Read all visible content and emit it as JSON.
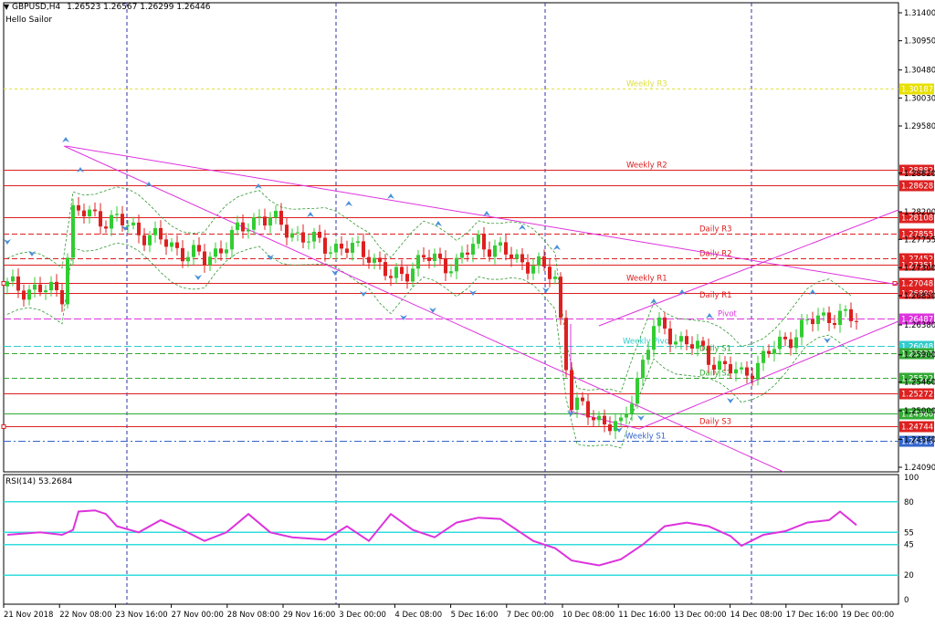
{
  "header": {
    "menu_arrow": "▼",
    "symbol": "GBPUSD,H4",
    "ohlc": "1.26523 1.26567 1.26299 1.26446",
    "indicator": "Hello Sailor"
  },
  "rsi": {
    "label": "RSI(14) 53.2684",
    "level_labels": [
      "100",
      "80",
      "55",
      "45",
      "20",
      "0"
    ]
  },
  "price_axis": {
    "ticks": [
      "1.31400",
      "1.30950",
      "1.30480",
      "1.30030",
      "1.29580",
      "1.28820",
      "1.28200",
      "1.27755",
      "1.27300",
      "1.26850",
      "1.26380",
      "1.25900",
      "1.25460",
      "1.25000",
      "1.24540",
      "1.24090"
    ]
  },
  "time_axis": {
    "labels": [
      "21 Nov 2018",
      "22 Nov 08:00",
      "23 Nov 16:00",
      "27 Nov 00:00",
      "28 Nov 08:00",
      "29 Nov 16:00",
      "3 Dec 00:00",
      "4 Dec 08:00",
      "5 Dec 16:00",
      "7 Dec 00:00",
      "10 Dec 08:00",
      "11 Dec 16:00",
      "13 Dec 00:00",
      "14 Dec 08:00",
      "17 Dec 16:00",
      "19 Dec 00:00"
    ]
  },
  "levels": [
    {
      "name": "Weekly R3",
      "price": "1.30187",
      "color": "#e0e040",
      "tag_color": "#e8e000"
    },
    {
      "name": "Weekly R2",
      "price": "1.28882",
      "color": "#dd2020",
      "tag_color": "#dd2020"
    },
    {
      "name": "",
      "price": "1.28628",
      "color": "#dd2020",
      "tag_color": "#dd2020"
    },
    {
      "name": "",
      "price": "1.28108",
      "color": "#dd2020",
      "tag_color": "#dd2020"
    },
    {
      "name": "Daily R3",
      "price": "1.27855",
      "color": "#dd2020",
      "tag_color": "#dd2020"
    },
    {
      "name": "Daily R2",
      "price": "1.27452",
      "color": "#dd2020",
      "tag_color": "#dd2020"
    },
    {
      "name": "",
      "price": "1.27351",
      "color": "#dd2020",
      "tag_color": "#dd2020"
    },
    {
      "name": "Weekly R1",
      "price": "1.27048",
      "color": "#dd2020",
      "tag_color": "#dd2020"
    },
    {
      "name": "",
      "price": "1.26890",
      "color": "#dd2020",
      "tag_color": "#dd2020"
    },
    {
      "name": "Daily R1",
      "price": "",
      "color": "#dd2020",
      "tag_color": "#dd2020"
    },
    {
      "name": "Pivot",
      "price": "1.26487",
      "color": "#dd33dd",
      "tag_color": "#dd33dd"
    },
    {
      "name": "Weekly Pivot",
      "price": "1.26048",
      "color": "#33cccc",
      "tag_color": "#33cccc"
    },
    {
      "name": "Daily S1",
      "price": "1.25925",
      "color": "#33aa33",
      "tag_color": "#33aa33"
    },
    {
      "name": "Daily S2",
      "price": "1.25522",
      "color": "#33aa33",
      "tag_color": "#33aa33"
    },
    {
      "name": "",
      "price": "1.25272",
      "color": "#dd2020",
      "tag_color": "#dd2020"
    },
    {
      "name": "",
      "price": "1.24960",
      "color": "#33aa33",
      "tag_color": "#33aa33"
    },
    {
      "name": "Daily S3",
      "price": "1.24744",
      "color": "#dd2020",
      "tag_color": "#dd2020"
    },
    {
      "name": "Weekly S1",
      "price": "1.24519",
      "color": "#3366cc",
      "tag_color": "#3366cc"
    }
  ],
  "colors": {
    "bull": "#33cc33",
    "bear": "#dd2020",
    "trendline": "#dd33dd",
    "rsi": "#dd33dd",
    "rsi_level": "#33dddd",
    "grid_v": "#3333aa",
    "fractal": "#4a90d9"
  }
}
